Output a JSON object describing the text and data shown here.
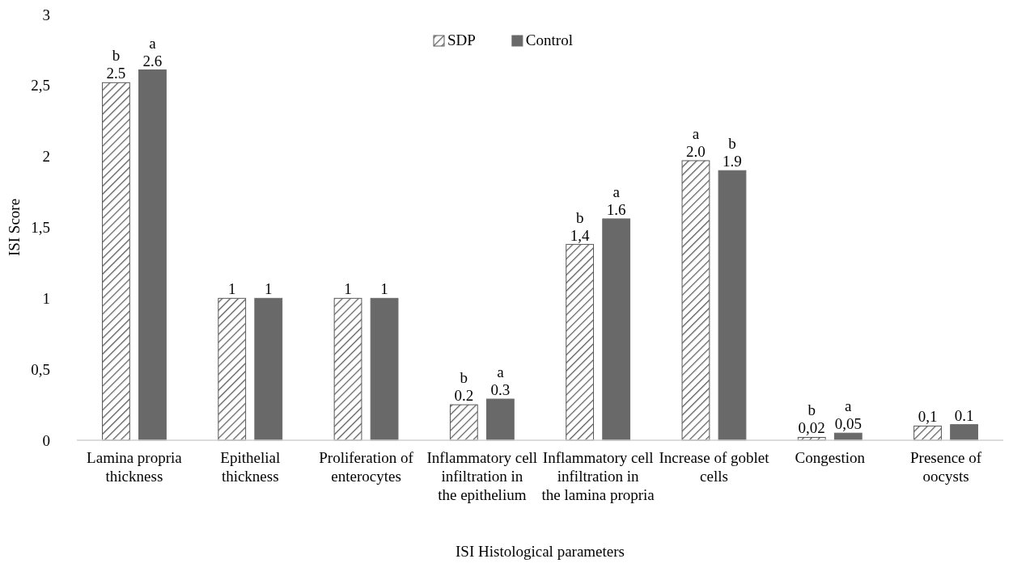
{
  "chart_data": {
    "type": "bar",
    "xlabel": "ISI Histological parameters",
    "ylabel": "ISI Score",
    "categories": [
      "Lamina propria thickness",
      "Epithelial thickness",
      "Proliferation of enterocytes",
      "Inflammatory cell infiltration in the epithelium",
      "Inflammatory cell infiltration in the lamina propria",
      "Increase of goblet cells",
      "Congestion",
      "Presence of oocysts"
    ],
    "series": [
      {
        "name": "SDP",
        "color": "#595959",
        "values": [
          2.52,
          1,
          1,
          0.25,
          1.38,
          1.97,
          0.02,
          0.1
        ],
        "value_labels": [
          "b\n2.5",
          "1",
          "1",
          "b\n0.2",
          "b\n1,4",
          "a\n2.0",
          "b\n0,02",
          "0,1"
        ]
      },
      {
        "name": "Control",
        "color": "#696969",
        "values": [
          2.61,
          1,
          1,
          0.29,
          1.56,
          1.9,
          0.05,
          0.11
        ],
        "value_labels": [
          "a\n2.6",
          "1",
          "1",
          "a\n0.3",
          "a\n1.6",
          "b\n1.9",
          "a\n0,05",
          "0.1"
        ]
      }
    ],
    "ylim": [
      0,
      3
    ],
    "yticks": [
      0,
      {
        "value": 0.5,
        "label": "0,5"
      },
      1,
      {
        "value": 1.5,
        "label": "1,5"
      },
      2,
      {
        "value": 2.5,
        "label": "2,5"
      },
      3
    ],
    "grid": false,
    "legend": "top"
  }
}
